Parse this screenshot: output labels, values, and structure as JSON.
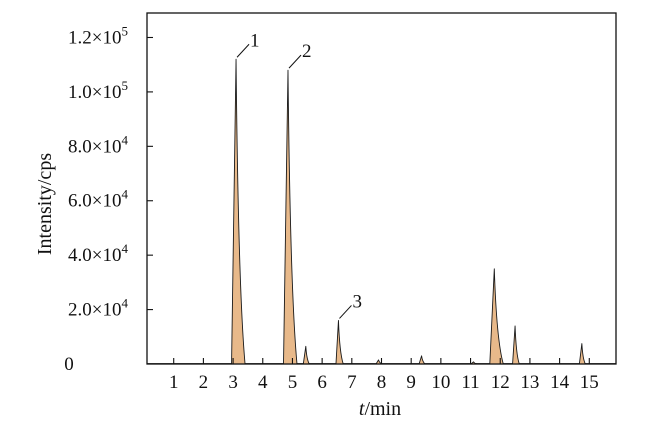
{
  "chart_data": {
    "type": "line",
    "xlabel_italic": "t",
    "xlabel_rest": "/min",
    "ylabel": "Intensity/cps",
    "xlim": [
      0.1,
      15.9
    ],
    "ylim": [
      0,
      129000
    ],
    "x_ticks": [
      1,
      2,
      3,
      4,
      5,
      6,
      7,
      8,
      9,
      10,
      11,
      12,
      13,
      14,
      15
    ],
    "y_ticks": [
      {
        "value": 0,
        "mant": "0",
        "exp": ""
      },
      {
        "value": 20000,
        "mant": "2.0×10",
        "exp": "4"
      },
      {
        "value": 40000,
        "mant": "4.0×10",
        "exp": "4"
      },
      {
        "value": 60000,
        "mant": "6.0×10",
        "exp": "4"
      },
      {
        "value": 80000,
        "mant": "8.0×10",
        "exp": "4"
      },
      {
        "value": 100000,
        "mant": "1.0×10",
        "exp": "5"
      },
      {
        "value": 120000,
        "mant": "1.2×10",
        "exp": "5"
      }
    ],
    "grid": false,
    "fill_color": "#e8b98a",
    "line_color": "#1a1a1a",
    "series": [
      {
        "peaks": [
          {
            "t": 3.1,
            "height": 112000,
            "label": "1"
          },
          {
            "t": 4.85,
            "height": 108000,
            "label": "2"
          },
          {
            "t": 5.45,
            "height": 6500,
            "label": ""
          },
          {
            "t": 6.55,
            "height": 16000,
            "label": "3"
          },
          {
            "t": 7.9,
            "height": 1500,
            "label": ""
          },
          {
            "t": 9.35,
            "height": 3000,
            "label": ""
          },
          {
            "t": 11.1,
            "height": 800,
            "label": ""
          },
          {
            "t": 11.8,
            "height": 35000,
            "label": ""
          },
          {
            "t": 12.5,
            "height": 14000,
            "label": ""
          },
          {
            "t": 14.75,
            "height": 7500,
            "label": ""
          }
        ]
      }
    ]
  }
}
